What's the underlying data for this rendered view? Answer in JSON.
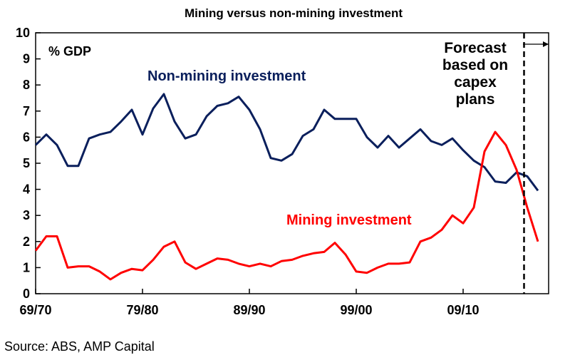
{
  "chart_data": {
    "type": "line",
    "title": "Mining versus non-mining investment",
    "unit_label": "% GDP",
    "ylim": [
      0,
      10
    ],
    "yticks": [
      0,
      1,
      2,
      3,
      4,
      5,
      6,
      7,
      8,
      9,
      10
    ],
    "xlim": [
      1969.5,
      2017.5
    ],
    "xticks": [
      {
        "value": 1969.5,
        "label": "69/70"
      },
      {
        "value": 1979.5,
        "label": "79/80"
      },
      {
        "value": 1989.5,
        "label": "89/90"
      },
      {
        "value": 1999.5,
        "label": "99/00"
      },
      {
        "value": 2009.5,
        "label": "09/10"
      }
    ],
    "forecast": {
      "start": 2015.2,
      "label_lines": [
        "Forecast",
        "based on",
        "capex",
        "plans"
      ]
    },
    "series": [
      {
        "name": "Non-mining investment",
        "color": "#0a1f5c",
        "x": [
          1969.5,
          1970.5,
          1971.5,
          1972.5,
          1973.5,
          1974.5,
          1975.5,
          1976.5,
          1977.5,
          1978.5,
          1979.5,
          1980.5,
          1981.5,
          1982.5,
          1983.5,
          1984.5,
          1985.5,
          1986.5,
          1987.5,
          1988.5,
          1989.5,
          1990.5,
          1991.5,
          1992.5,
          1993.5,
          1994.5,
          1995.5,
          1996.5,
          1997.5,
          1998.5,
          1999.5,
          2000.5,
          2001.5,
          2002.5,
          2003.5,
          2004.5,
          2005.5,
          2006.5,
          2007.5,
          2008.5,
          2009.5,
          2010.5,
          2011.5,
          2012.5,
          2013.5,
          2014.5,
          2015.5,
          2016.5
        ],
        "values": [
          5.7,
          6.1,
          5.7,
          4.9,
          4.9,
          5.95,
          6.1,
          6.2,
          6.6,
          7.05,
          6.1,
          7.1,
          7.65,
          6.6,
          5.95,
          6.1,
          6.8,
          7.2,
          7.3,
          7.55,
          7.05,
          6.3,
          5.2,
          5.1,
          5.35,
          6.05,
          6.3,
          7.05,
          6.7,
          6.7,
          6.7,
          6.0,
          5.6,
          6.05,
          5.6,
          5.95,
          6.3,
          5.85,
          5.7,
          5.95,
          5.5,
          5.1,
          4.85,
          4.3,
          4.25,
          4.65,
          4.5,
          3.95
        ]
      },
      {
        "name": "Mining investment",
        "color": "#ff0000",
        "x": [
          1969.5,
          1970.5,
          1971.5,
          1972.5,
          1973.5,
          1974.5,
          1975.5,
          1976.5,
          1977.5,
          1978.5,
          1979.5,
          1980.5,
          1981.5,
          1982.5,
          1983.5,
          1984.5,
          1985.5,
          1986.5,
          1987.5,
          1988.5,
          1989.5,
          1990.5,
          1991.5,
          1992.5,
          1993.5,
          1994.5,
          1995.5,
          1996.5,
          1997.5,
          1998.5,
          1999.5,
          2000.5,
          2001.5,
          2002.5,
          2003.5,
          2004.5,
          2005.5,
          2006.5,
          2007.5,
          2008.5,
          2009.5,
          2010.5,
          2011.5,
          2012.5,
          2013.5,
          2014.5,
          2015.5,
          2016.5
        ],
        "values": [
          1.65,
          2.2,
          2.2,
          1.0,
          1.05,
          1.05,
          0.85,
          0.55,
          0.8,
          0.95,
          0.9,
          1.3,
          1.8,
          2.0,
          1.2,
          0.95,
          1.15,
          1.35,
          1.3,
          1.15,
          1.05,
          1.15,
          1.05,
          1.25,
          1.3,
          1.45,
          1.55,
          1.6,
          1.95,
          1.5,
          0.85,
          0.8,
          1.0,
          1.15,
          1.15,
          1.2,
          2.0,
          2.15,
          2.45,
          3.0,
          2.7,
          3.3,
          5.45,
          6.2,
          5.7,
          4.75,
          3.3,
          2.0
        ]
      }
    ],
    "source": "Source: ABS, AMP Capital"
  }
}
